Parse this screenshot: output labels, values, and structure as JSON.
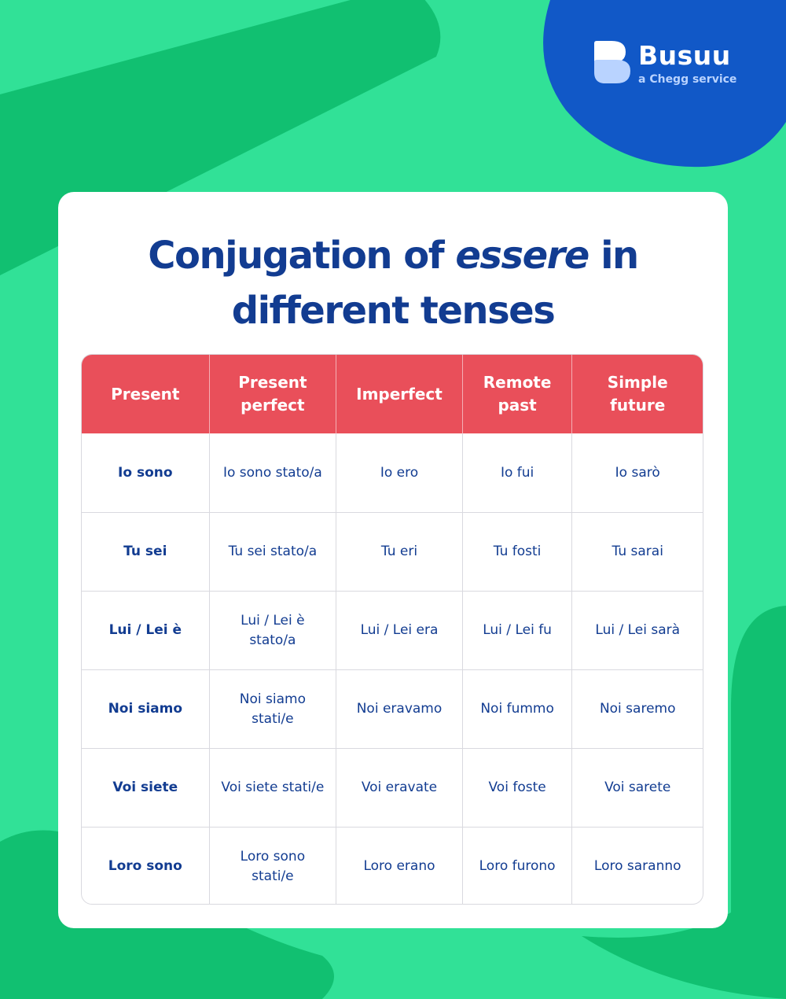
{
  "colors": {
    "background": "#31e197",
    "background_shape": "#11c071",
    "blob": "#1158c7",
    "title": "#123c91",
    "header_row": "#e94f5a",
    "card": "#ffffff"
  },
  "logo": {
    "icon": "busuu-logo-icon",
    "name": "Busuu",
    "tagline": "a Chegg service"
  },
  "title": {
    "before": "Conjugation of ",
    "emphasis": "essere",
    "after": " in different tenses"
  },
  "table": {
    "headers": [
      "Present",
      "Present perfect",
      "Imperfect",
      "Remote past",
      "Simple future"
    ],
    "rows": [
      [
        "Io sono",
        "Io sono stato/a",
        "Io ero",
        "Io fui",
        "Io sarò"
      ],
      [
        "Tu sei",
        "Tu sei stato/a",
        "Tu eri",
        "Tu fosti",
        "Tu sarai"
      ],
      [
        "Lui / Lei è",
        "Lui / Lei è stato/a",
        "Lui / Lei era",
        "Lui / Lei fu",
        "Lui / Lei sarà"
      ],
      [
        "Noi siamo",
        "Noi siamo stati/e",
        "Noi eravamo",
        "Noi fummo",
        "Noi saremo"
      ],
      [
        "Voi siete",
        "Voi siete stati/e",
        "Voi eravate",
        "Voi foste",
        "Voi sarete"
      ],
      [
        "Loro sono",
        "Loro sono stati/e",
        "Loro erano",
        "Loro furono",
        "Loro saranno"
      ]
    ]
  }
}
